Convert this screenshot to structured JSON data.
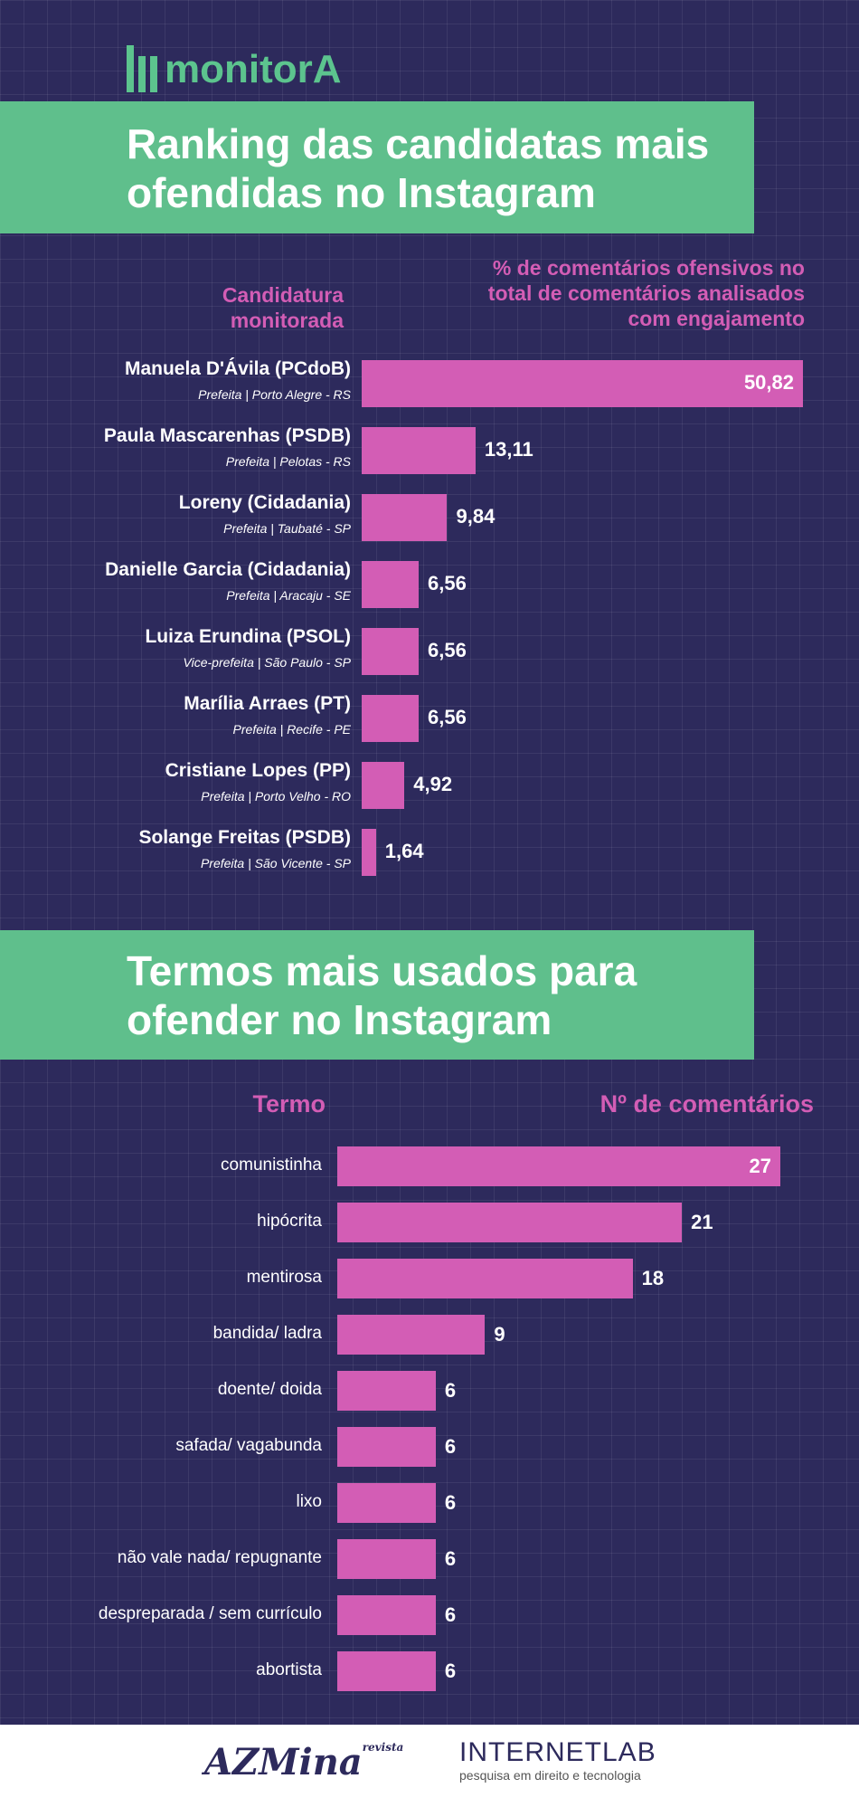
{
  "brand": {
    "logo": "monitorA"
  },
  "colors": {
    "background": "#2d2a5c",
    "accent_green": "#5fbf8c",
    "bar_pink": "#d35db5"
  },
  "chart_data": [
    {
      "type": "bar",
      "orientation": "horizontal",
      "title": "Ranking das candidatas mais ofendidas no Instagram",
      "category_header": "Candidatura monitorada",
      "value_header": "% de comentários ofensivos no total de comentários analisados com engajamento",
      "categories": [
        {
          "name": "Manuela D'Ávila (PCdoB)",
          "detail": "Prefeita | Porto Alegre - RS"
        },
        {
          "name": "Paula Mascarenhas (PSDB)",
          "detail": "Prefeita | Pelotas - RS"
        },
        {
          "name": "Loreny (Cidadania)",
          "detail": "Prefeita | Taubaté - SP"
        },
        {
          "name": "Danielle Garcia (Cidadania)",
          "detail": "Prefeita | Aracaju - SE"
        },
        {
          "name": "Luiza Erundina (PSOL)",
          "detail": "Vice-prefeita | São Paulo - SP"
        },
        {
          "name": "Marília Arraes (PT)",
          "detail": "Prefeita | Recife - PE"
        },
        {
          "name": "Cristiane Lopes (PP)",
          "detail": "Prefeita | Porto Velho - RO"
        },
        {
          "name": "Solange Freitas (PSDB)",
          "detail": "Prefeita | São Vicente - SP"
        }
      ],
      "values": [
        50.82,
        13.11,
        9.84,
        6.56,
        6.56,
        6.56,
        4.92,
        1.64
      ],
      "labels": [
        "50,82",
        "13,11",
        "9,84",
        "6,56",
        "6,56",
        "6,56",
        "4,92",
        "1,64"
      ]
    },
    {
      "type": "bar",
      "orientation": "horizontal",
      "title": "Termos mais usados para ofender no Instagram",
      "category_header": "Termo",
      "value_header": "Nº de comentários",
      "categories": [
        "comunistinha",
        "hipócrita",
        "mentirosa",
        "bandida/ ladra",
        "doente/ doida",
        "safada/ vagabunda",
        "lixo",
        "não vale nada/ repugnante",
        "despreparada / sem currículo",
        "abortista"
      ],
      "values": [
        27,
        21,
        18,
        9,
        6,
        6,
        6,
        6,
        6,
        6
      ]
    }
  ],
  "footer": {
    "azmina": {
      "main": "AZMina",
      "small": "revista"
    },
    "internetlab": {
      "name": "INTERNETLAB",
      "tagline": "pesquisa em direito e tecnologia"
    }
  }
}
